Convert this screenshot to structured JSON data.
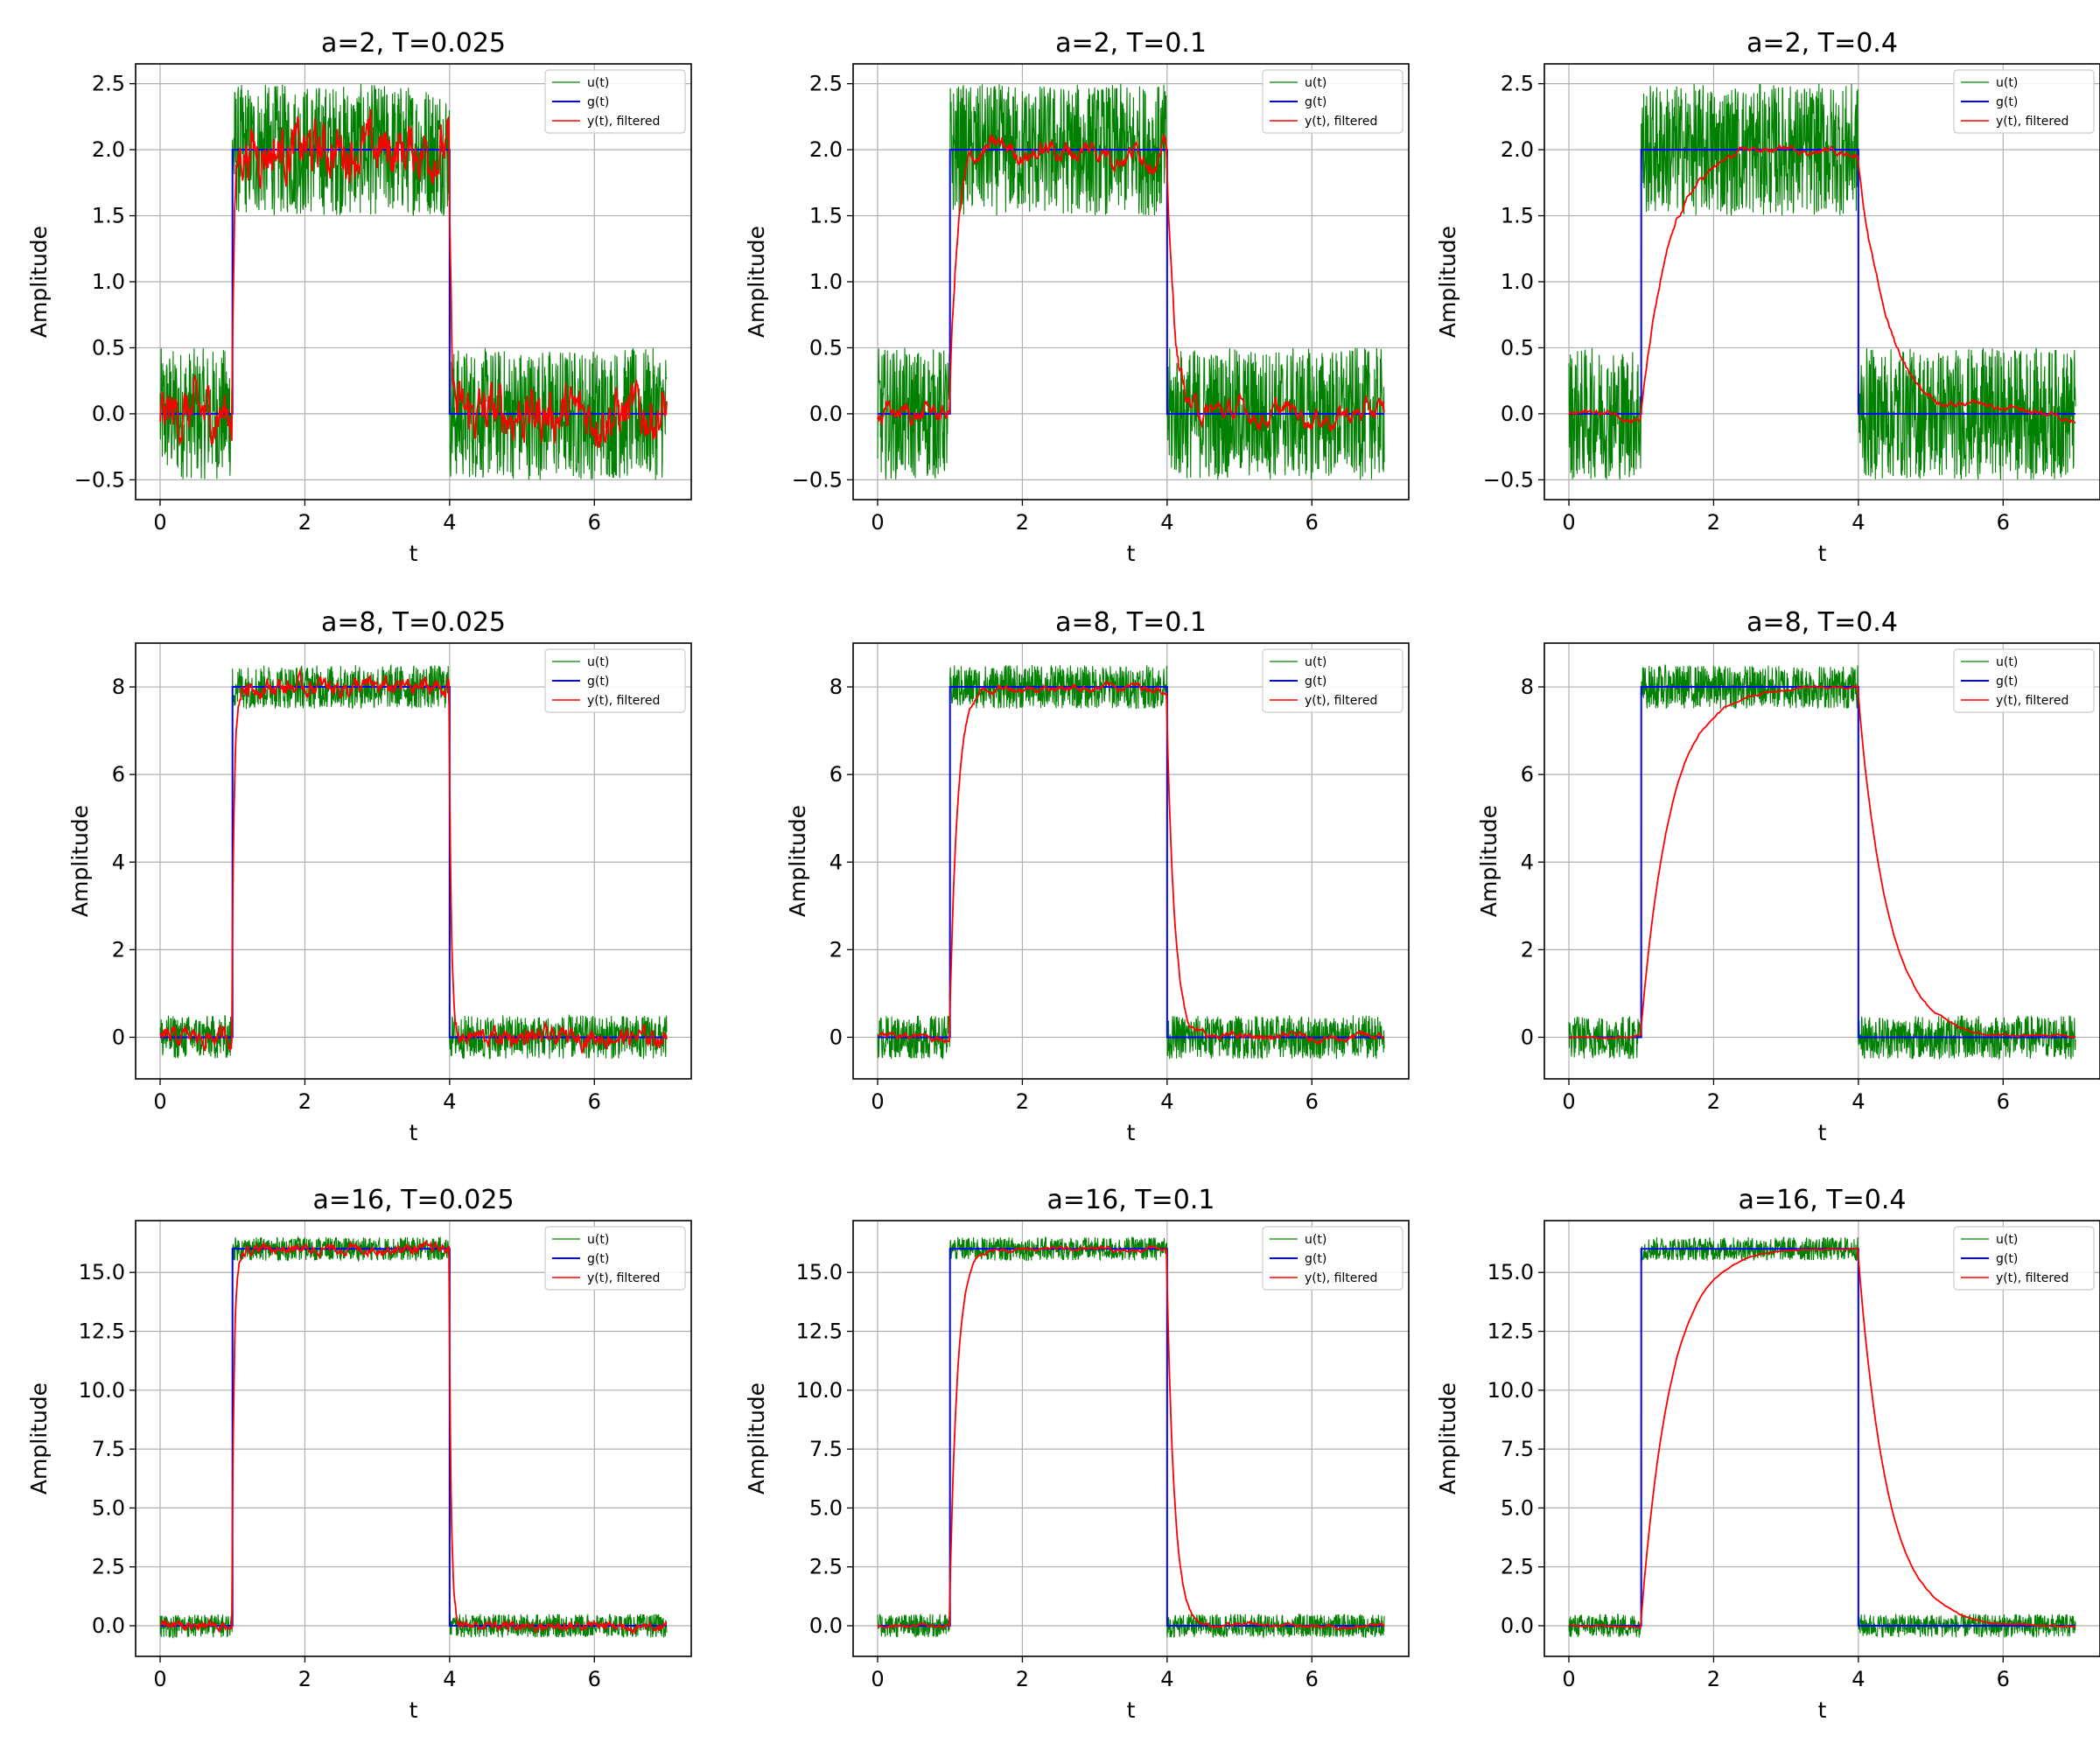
{
  "colors": {
    "u": "#008000",
    "g": "#0000ff",
    "y": "#ff0000",
    "grid": "#b0b0b0",
    "axes": "#000000"
  },
  "legend": {
    "placement": "upper-right",
    "labels": [
      "u(t)",
      "g(t)",
      "y(t), filtered"
    ]
  },
  "chart_data": [
    {
      "type": "line",
      "title": "a=2, T=0.025",
      "a": 2,
      "T": 0.025,
      "noise_amplitude": 0.5,
      "step_on": 1,
      "step_off": 4,
      "xlabel": "t",
      "ylabel": "Amplitude",
      "xlim": [
        0,
        7
      ],
      "ylim": [
        -0.65,
        2.65
      ],
      "xticks": [
        0,
        2,
        4,
        6
      ],
      "xtick_labels": [
        "0",
        "2",
        "4",
        "6"
      ],
      "yticks": [
        -0.5,
        0,
        0.5,
        1,
        1.5,
        2,
        2.5
      ],
      "ytick_labels": [
        "−0.5",
        "0.0",
        "0.5",
        "1.0",
        "1.5",
        "2.0",
        "2.5"
      ],
      "grid": true,
      "series": [
        {
          "name": "u(t)",
          "key": "u"
        },
        {
          "name": "g(t)",
          "key": "g"
        },
        {
          "name": "y(t), filtered",
          "key": "y"
        }
      ]
    },
    {
      "type": "line",
      "title": "a=2, T=0.1",
      "a": 2,
      "T": 0.1,
      "noise_amplitude": 0.5,
      "step_on": 1,
      "step_off": 4,
      "xlabel": "t",
      "ylabel": "Amplitude",
      "xlim": [
        0,
        7
      ],
      "ylim": [
        -0.65,
        2.65
      ],
      "xticks": [
        0,
        2,
        4,
        6
      ],
      "xtick_labels": [
        "0",
        "2",
        "4",
        "6"
      ],
      "yticks": [
        -0.5,
        0,
        0.5,
        1,
        1.5,
        2,
        2.5
      ],
      "ytick_labels": [
        "−0.5",
        "0.0",
        "0.5",
        "1.0",
        "1.5",
        "2.0",
        "2.5"
      ],
      "grid": true,
      "series": [
        {
          "name": "u(t)",
          "key": "u"
        },
        {
          "name": "g(t)",
          "key": "g"
        },
        {
          "name": "y(t), filtered",
          "key": "y"
        }
      ]
    },
    {
      "type": "line",
      "title": "a=2, T=0.4",
      "a": 2,
      "T": 0.4,
      "noise_amplitude": 0.5,
      "step_on": 1,
      "step_off": 4,
      "xlabel": "t",
      "ylabel": "Amplitude",
      "xlim": [
        0,
        7
      ],
      "ylim": [
        -0.65,
        2.65
      ],
      "xticks": [
        0,
        2,
        4,
        6
      ],
      "xtick_labels": [
        "0",
        "2",
        "4",
        "6"
      ],
      "yticks": [
        -0.5,
        0,
        0.5,
        1,
        1.5,
        2,
        2.5
      ],
      "ytick_labels": [
        "−0.5",
        "0.0",
        "0.5",
        "1.0",
        "1.5",
        "2.0",
        "2.5"
      ],
      "grid": true,
      "series": [
        {
          "name": "u(t)",
          "key": "u"
        },
        {
          "name": "g(t)",
          "key": "g"
        },
        {
          "name": "y(t), filtered",
          "key": "y"
        }
      ]
    },
    {
      "type": "line",
      "title": "a=8, T=0.025",
      "a": 8,
      "T": 0.025,
      "noise_amplitude": 0.5,
      "step_on": 1,
      "step_off": 4,
      "xlabel": "t",
      "ylabel": "Amplitude",
      "xlim": [
        0,
        7
      ],
      "ylim": [
        -0.95,
        9.0
      ],
      "xticks": [
        0,
        2,
        4,
        6
      ],
      "xtick_labels": [
        "0",
        "2",
        "4",
        "6"
      ],
      "yticks": [
        0,
        2,
        4,
        6,
        8
      ],
      "ytick_labels": [
        "0",
        "2",
        "4",
        "6",
        "8"
      ],
      "grid": true,
      "series": [
        {
          "name": "u(t)",
          "key": "u"
        },
        {
          "name": "g(t)",
          "key": "g"
        },
        {
          "name": "y(t), filtered",
          "key": "y"
        }
      ]
    },
    {
      "type": "line",
      "title": "a=8, T=0.1",
      "a": 8,
      "T": 0.1,
      "noise_amplitude": 0.5,
      "step_on": 1,
      "step_off": 4,
      "xlabel": "t",
      "ylabel": "Amplitude",
      "xlim": [
        0,
        7
      ],
      "ylim": [
        -0.95,
        9.0
      ],
      "xticks": [
        0,
        2,
        4,
        6
      ],
      "xtick_labels": [
        "0",
        "2",
        "4",
        "6"
      ],
      "yticks": [
        0,
        2,
        4,
        6,
        8
      ],
      "ytick_labels": [
        "0",
        "2",
        "4",
        "6",
        "8"
      ],
      "grid": true,
      "series": [
        {
          "name": "u(t)",
          "key": "u"
        },
        {
          "name": "g(t)",
          "key": "g"
        },
        {
          "name": "y(t), filtered",
          "key": "y"
        }
      ]
    },
    {
      "type": "line",
      "title": "a=8, T=0.4",
      "a": 8,
      "T": 0.4,
      "noise_amplitude": 0.5,
      "step_on": 1,
      "step_off": 4,
      "xlabel": "t",
      "ylabel": "Amplitude",
      "xlim": [
        0,
        7
      ],
      "ylim": [
        -0.95,
        9.0
      ],
      "xticks": [
        0,
        2,
        4,
        6
      ],
      "xtick_labels": [
        "0",
        "2",
        "4",
        "6"
      ],
      "yticks": [
        0,
        2,
        4,
        6,
        8
      ],
      "ytick_labels": [
        "0",
        "2",
        "4",
        "6",
        "8"
      ],
      "grid": true,
      "series": [
        {
          "name": "u(t)",
          "key": "u"
        },
        {
          "name": "g(t)",
          "key": "g"
        },
        {
          "name": "y(t), filtered",
          "key": "y"
        }
      ]
    },
    {
      "type": "line",
      "title": "a=16, T=0.025",
      "a": 16,
      "T": 0.025,
      "noise_amplitude": 0.5,
      "step_on": 1,
      "step_off": 4,
      "xlabel": "t",
      "ylabel": "Amplitude",
      "xlim": [
        0,
        7
      ],
      "ylim": [
        -1.3,
        17.2
      ],
      "xticks": [
        0,
        2,
        4,
        6
      ],
      "xtick_labels": [
        "0",
        "2",
        "4",
        "6"
      ],
      "yticks": [
        0,
        2.5,
        5,
        7.5,
        10,
        12.5,
        15
      ],
      "ytick_labels": [
        "0.0",
        "2.5",
        "5.0",
        "7.5",
        "10.0",
        "12.5",
        "15.0"
      ],
      "grid": true,
      "series": [
        {
          "name": "u(t)",
          "key": "u"
        },
        {
          "name": "g(t)",
          "key": "g"
        },
        {
          "name": "y(t), filtered",
          "key": "y"
        }
      ]
    },
    {
      "type": "line",
      "title": "a=16, T=0.1",
      "a": 16,
      "T": 0.1,
      "noise_amplitude": 0.5,
      "step_on": 1,
      "step_off": 4,
      "xlabel": "t",
      "ylabel": "Amplitude",
      "xlim": [
        0,
        7
      ],
      "ylim": [
        -1.3,
        17.2
      ],
      "xticks": [
        0,
        2,
        4,
        6
      ],
      "xtick_labels": [
        "0",
        "2",
        "4",
        "6"
      ],
      "yticks": [
        0,
        2.5,
        5,
        7.5,
        10,
        12.5,
        15
      ],
      "ytick_labels": [
        "0.0",
        "2.5",
        "5.0",
        "7.5",
        "10.0",
        "12.5",
        "15.0"
      ],
      "grid": true,
      "series": [
        {
          "name": "u(t)",
          "key": "u"
        },
        {
          "name": "g(t)",
          "key": "g"
        },
        {
          "name": "y(t), filtered",
          "key": "y"
        }
      ]
    },
    {
      "type": "line",
      "title": "a=16, T=0.4",
      "a": 16,
      "T": 0.4,
      "noise_amplitude": 0.5,
      "step_on": 1,
      "step_off": 4,
      "xlabel": "t",
      "ylabel": "Amplitude",
      "xlim": [
        0,
        7
      ],
      "ylim": [
        -1.3,
        17.2
      ],
      "xticks": [
        0,
        2,
        4,
        6
      ],
      "xtick_labels": [
        "0",
        "2",
        "4",
        "6"
      ],
      "yticks": [
        0,
        2.5,
        5,
        7.5,
        10,
        12.5,
        15
      ],
      "ytick_labels": [
        "0.0",
        "2.5",
        "5.0",
        "7.5",
        "10.0",
        "12.5",
        "15.0"
      ],
      "grid": true,
      "series": [
        {
          "name": "u(t)",
          "key": "u"
        },
        {
          "name": "g(t)",
          "key": "g"
        },
        {
          "name": "y(t), filtered",
          "key": "y"
        }
      ]
    }
  ]
}
